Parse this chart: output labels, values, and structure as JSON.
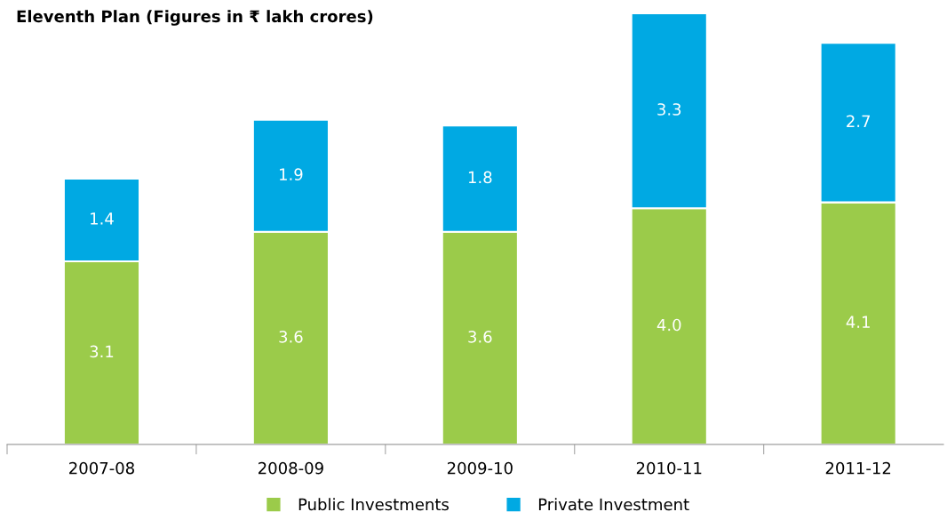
{
  "chart_data": {
    "type": "bar",
    "stacked": true,
    "title": "Eleventh Plan (Figures in ₹ lakh crores)",
    "categories": [
      "2007-08",
      "2008-09",
      "2009-10",
      "2010-11",
      "2011-12"
    ],
    "series": [
      {
        "name": "Public Investments",
        "color": "#9bcb4a",
        "values": [
          3.1,
          3.6,
          3.6,
          4.0,
          4.1
        ],
        "value_labels": [
          "3.1",
          "3.6",
          "3.6",
          "4.0",
          "4.1"
        ]
      },
      {
        "name": "Private Investment",
        "color": "#00a9e3",
        "values": [
          1.4,
          1.9,
          1.8,
          3.3,
          2.7
        ],
        "value_labels": [
          "1.4",
          "1.9",
          "1.8",
          "3.3",
          "2.7"
        ]
      }
    ],
    "legend": "bottom",
    "grid": false
  }
}
